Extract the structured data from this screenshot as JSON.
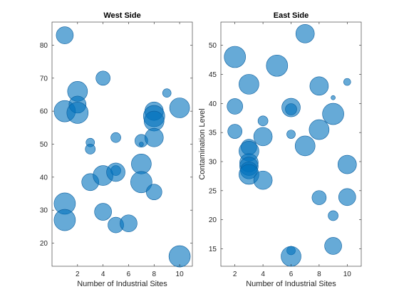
{
  "chart_data": [
    {
      "type": "scatter",
      "title": "West Side",
      "xlabel": "Number of Industrial Sites",
      "ylabel": "",
      "xlim": [
        0,
        11
      ],
      "ylim": [
        13,
        87
      ],
      "xticks": [
        2,
        4,
        6,
        8,
        10
      ],
      "yticks": [
        20,
        30,
        40,
        50,
        60,
        70,
        80
      ],
      "color": "#0072BD",
      "points": [
        {
          "x": 1,
          "y": 83,
          "s": 12
        },
        {
          "x": 1,
          "y": 60,
          "s": 15
        },
        {
          "x": 1,
          "y": 32,
          "s": 15
        },
        {
          "x": 1,
          "y": 27,
          "s": 15
        },
        {
          "x": 2,
          "y": 66,
          "s": 14
        },
        {
          "x": 2,
          "y": 62,
          "s": 12
        },
        {
          "x": 2,
          "y": 59.5,
          "s": 15
        },
        {
          "x": 3,
          "y": 50.5,
          "s": 6
        },
        {
          "x": 3,
          "y": 48.5,
          "s": 7
        },
        {
          "x": 3,
          "y": 38.5,
          "s": 12
        },
        {
          "x": 4,
          "y": 70,
          "s": 10
        },
        {
          "x": 4,
          "y": 40.5,
          "s": 14
        },
        {
          "x": 4,
          "y": 29.5,
          "s": 12
        },
        {
          "x": 5,
          "y": 52,
          "s": 7
        },
        {
          "x": 5,
          "y": 42,
          "s": 7
        },
        {
          "x": 5,
          "y": 41.5,
          "s": 13
        },
        {
          "x": 5,
          "y": 25.5,
          "s": 11
        },
        {
          "x": 6,
          "y": 26,
          "s": 12
        },
        {
          "x": 7,
          "y": 51,
          "s": 9
        },
        {
          "x": 7,
          "y": 50,
          "s": 3
        },
        {
          "x": 7,
          "y": 44,
          "s": 14
        },
        {
          "x": 7,
          "y": 38.5,
          "s": 15
        },
        {
          "x": 8,
          "y": 60,
          "s": 13
        },
        {
          "x": 8,
          "y": 58.5,
          "s": 15
        },
        {
          "x": 8,
          "y": 57,
          "s": 14
        },
        {
          "x": 8,
          "y": 52,
          "s": 13
        },
        {
          "x": 8,
          "y": 35.5,
          "s": 11
        },
        {
          "x": 9,
          "y": 65.5,
          "s": 6
        },
        {
          "x": 10,
          "y": 61,
          "s": 14
        },
        {
          "x": 10,
          "y": 16,
          "s": 15
        }
      ]
    },
    {
      "type": "scatter",
      "title": "East Side",
      "xlabel": "Number of Industrial Sites",
      "ylabel": "Contamination Level",
      "xlim": [
        1,
        11
      ],
      "ylim": [
        12,
        54
      ],
      "xticks": [
        2,
        4,
        6,
        8,
        10
      ],
      "yticks": [
        15,
        20,
        25,
        30,
        35,
        40,
        45,
        50
      ],
      "color": "#0072BD",
      "points": [
        {
          "x": 2,
          "y": 48,
          "s": 15
        },
        {
          "x": 2,
          "y": 39.5,
          "s": 11
        },
        {
          "x": 2,
          "y": 35.2,
          "s": 10
        },
        {
          "x": 3,
          "y": 43.3,
          "s": 14
        },
        {
          "x": 3,
          "y": 32.5,
          "s": 11
        },
        {
          "x": 3,
          "y": 31.8,
          "s": 14
        },
        {
          "x": 3,
          "y": 29.8,
          "s": 13
        },
        {
          "x": 3,
          "y": 29.2,
          "s": 13
        },
        {
          "x": 3,
          "y": 28.5,
          "s": 12
        },
        {
          "x": 3,
          "y": 27.8,
          "s": 14
        },
        {
          "x": 4,
          "y": 37,
          "s": 7
        },
        {
          "x": 4,
          "y": 34.3,
          "s": 13
        },
        {
          "x": 4,
          "y": 26.8,
          "s": 13
        },
        {
          "x": 5,
          "y": 46.5,
          "s": 15
        },
        {
          "x": 6,
          "y": 39.3,
          "s": 13
        },
        {
          "x": 6,
          "y": 39,
          "s": 8
        },
        {
          "x": 6,
          "y": 34.7,
          "s": 6
        },
        {
          "x": 6,
          "y": 14.7,
          "s": 6
        },
        {
          "x": 6,
          "y": 13.7,
          "s": 14
        },
        {
          "x": 7,
          "y": 52,
          "s": 13
        },
        {
          "x": 7,
          "y": 32.7,
          "s": 14
        },
        {
          "x": 8,
          "y": 43,
          "s": 13
        },
        {
          "x": 8,
          "y": 35.5,
          "s": 14
        },
        {
          "x": 8,
          "y": 23.8,
          "s": 10
        },
        {
          "x": 9,
          "y": 41,
          "s": 3
        },
        {
          "x": 9,
          "y": 38.2,
          "s": 15
        },
        {
          "x": 9,
          "y": 20.7,
          "s": 7
        },
        {
          "x": 9,
          "y": 15.5,
          "s": 12
        },
        {
          "x": 10,
          "y": 43.7,
          "s": 5
        },
        {
          "x": 10,
          "y": 29.5,
          "s": 13
        },
        {
          "x": 10,
          "y": 23.9,
          "s": 12
        }
      ]
    }
  ]
}
